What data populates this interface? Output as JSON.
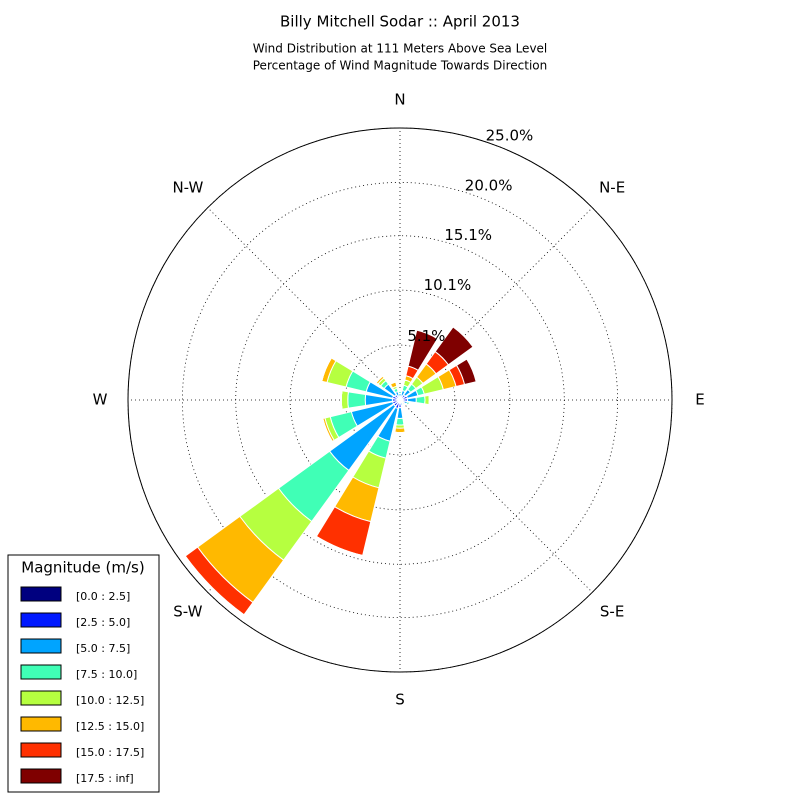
{
  "chart_data": {
    "type": "windrose",
    "title": "Billy Mitchell Sodar :: April 2013",
    "subtitle": [
      "Wind Distribution at 111 Meters Above Sea Level",
      "Percentage of Wind Magnitude Towards Direction"
    ],
    "directions": [
      "N",
      "N-E",
      "E",
      "S-E",
      "S",
      "S-W",
      "W",
      "N-W"
    ],
    "ylim": [
      0,
      25
    ],
    "yticks": [
      {
        "value": 5.05,
        "label": "5.1%"
      },
      {
        "value": 10.1,
        "label": "10.1%"
      },
      {
        "value": 15.1,
        "label": "15.1%"
      },
      {
        "value": 20.0,
        "label": "20.0%"
      },
      {
        "value": 25.0,
        "label": "25.0%"
      }
    ],
    "grid": true,
    "legend_title": "Magnitude (m/s)",
    "legend_position": "lower left",
    "series": [
      {
        "name": "[0.0 : 2.5]",
        "color": "#00007f",
        "values": [
          0.1,
          0.1,
          0.2,
          0.2,
          0.2,
          0.1,
          0.1,
          0.1,
          0.2,
          0.2,
          0.2,
          0.2,
          0.2,
          0.2,
          0.2,
          0.1
        ]
      },
      {
        "name": "[2.5 : 5.0]",
        "color": "#0019ff",
        "values": [
          0.2,
          0.3,
          0.4,
          0.5,
          0.5,
          0.3,
          0.2,
          0.2,
          0.5,
          0.6,
          0.5,
          0.5,
          0.5,
          0.5,
          0.4,
          0.3
        ]
      },
      {
        "name": "[5.0 : 7.5]",
        "color": "#00a4ff",
        "values": [
          0.3,
          0.5,
          0.6,
          1.0,
          0.8,
          0.3,
          0.1,
          0.2,
          1.0,
          3.1,
          7.3,
          3.9,
          2.5,
          2.5,
          1.2,
          0.4
        ]
      },
      {
        "name": "[7.5 : 10.0]",
        "color": "#40ffb6",
        "values": [
          0.2,
          0.5,
          0.6,
          0.6,
          0.8,
          0.2,
          0,
          0,
          0.6,
          1.6,
          5.8,
          2.0,
          1.6,
          1.9,
          0.4,
          0.3
        ]
      },
      {
        "name": "[10.0 : 12.5]",
        "color": "#b6ff40",
        "values": [
          0,
          0.5,
          0.8,
          1.8,
          0.4,
          0,
          0,
          0,
          0.3,
          2.8,
          4.4,
          0.5,
          0.6,
          1.8,
          0.3,
          0.2
        ]
      },
      {
        "name": "[12.5 : 15.0]",
        "color": "#ffb900",
        "values": [
          0,
          0.4,
          1.5,
          1.2,
          0,
          0,
          0,
          0,
          0.4,
          3.2,
          4.8,
          0.2,
          0,
          0.5,
          0.2,
          0.4
        ]
      },
      {
        "name": "[15.0 : 17.5]",
        "color": "#ff3000",
        "values": [
          0,
          0.9,
          1.4,
          0.8,
          0,
          0,
          0,
          0,
          0,
          3.2,
          1.4,
          0,
          0,
          0,
          0,
          0
        ]
      },
      {
        "name": "[17.5 : inf]",
        "color": "#7f0000",
        "values": [
          0,
          3.4,
          2.8,
          1.1,
          0,
          0,
          0,
          0,
          0,
          0,
          0,
          0,
          0,
          0,
          0,
          0
        ]
      }
    ]
  }
}
